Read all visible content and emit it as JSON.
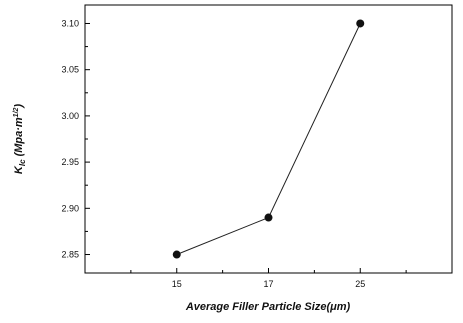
{
  "chart_data": {
    "type": "line",
    "title": "",
    "xlabel": "Average Filler Particle Size(μm)",
    "ylabel_main": "K",
    "ylabel_sub": "Ic",
    "ylabel_units": " (Mpa·m",
    "ylabel_sup": "1/2",
    "ylabel_close": ")",
    "categories": [
      "15",
      "17",
      "25"
    ],
    "series": [
      {
        "values": [
          2.85,
          2.89,
          3.1
        ]
      }
    ],
    "ylim": [
      2.83,
      3.12
    ],
    "yticks": [
      "2.85",
      "2.90",
      "2.95",
      "3.00",
      "3.05",
      "3.10"
    ],
    "grid": false,
    "colors": {
      "line": "#222222",
      "marker": "#111111",
      "axis": "#000000"
    }
  }
}
